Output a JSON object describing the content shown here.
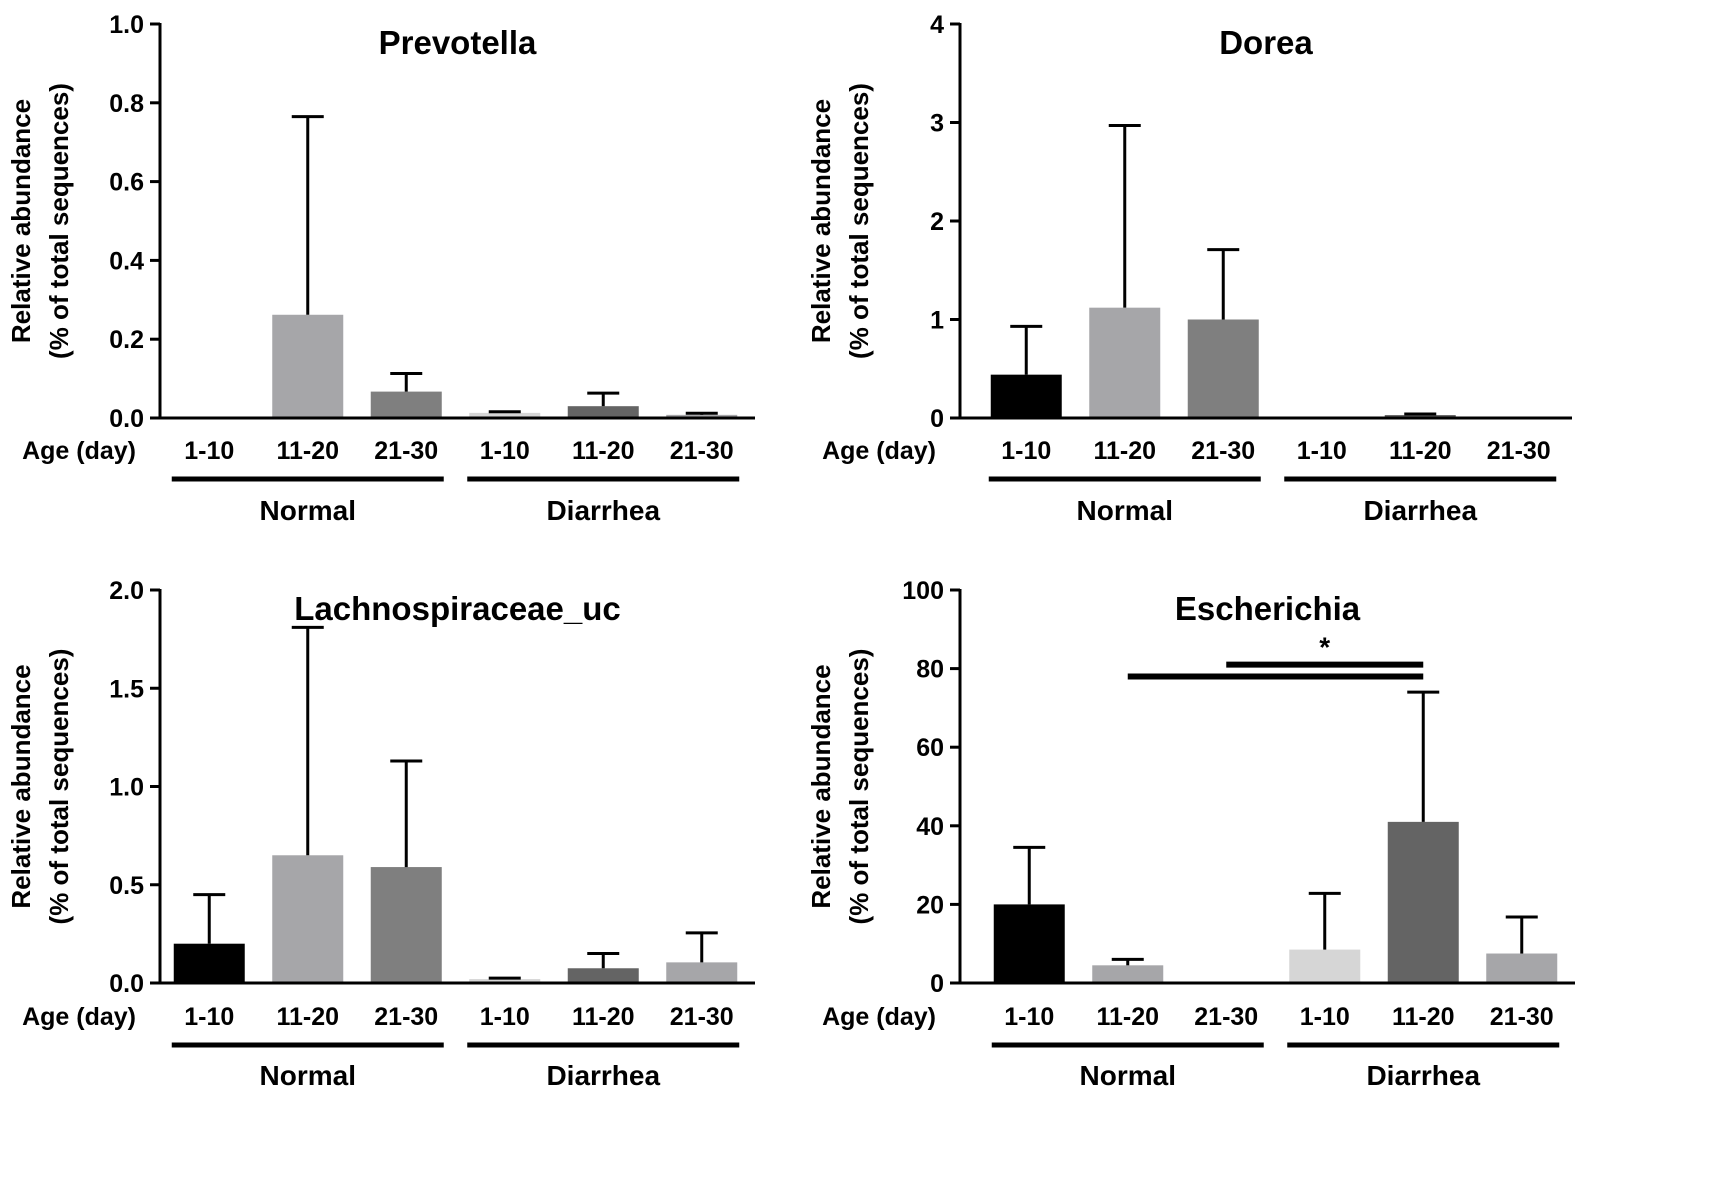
{
  "chart_data": [
    {
      "type": "bar",
      "title": "Prevotella",
      "ylabel_line1": "Relative abundance",
      "ylabel_line2": "(% of total sequences)",
      "xlabel": "Age (day)",
      "yticks": [
        "0.0",
        "0.2",
        "0.4",
        "0.6",
        "0.8",
        "1.0"
      ],
      "ytick_values": [
        0,
        0.2,
        0.4,
        0.6,
        0.8,
        1.0
      ],
      "ylim": [
        0,
        1.0
      ],
      "categories": [
        "1-10",
        "11-20",
        "21-30",
        "1-10",
        "11-20",
        "21-30"
      ],
      "groups": [
        "Normal",
        "Diarrhea"
      ],
      "values": [
        0.0,
        0.262,
        0.067,
        0.013,
        0.03,
        0.008
      ],
      "errors": [
        0.0,
        0.765,
        0.113,
        0.016,
        0.063,
        0.012
      ],
      "colors": [
        "#000000",
        "#a6a6a9",
        "#7f7f7f",
        "#d6d6d6",
        "#646464",
        "#a6a6a9"
      ],
      "significance": []
    },
    {
      "type": "bar",
      "title": "Dorea",
      "ylabel_line1": "Relative abundance",
      "ylabel_line2": "(% of total sequences)",
      "xlabel": "Age (day)",
      "yticks": [
        "0",
        "1",
        "2",
        "3",
        "4"
      ],
      "ytick_values": [
        0,
        1,
        2,
        3,
        4
      ],
      "ylim": [
        0,
        4
      ],
      "categories": [
        "1-10",
        "11-20",
        "21-30",
        "1-10",
        "11-20",
        "21-30"
      ],
      "groups": [
        "Normal",
        "Diarrhea"
      ],
      "values": [
        0.44,
        1.12,
        1.0,
        0.01,
        0.03,
        0.01
      ],
      "errors": [
        0.93,
        2.97,
        1.71,
        0.01,
        0.04,
        0.01
      ],
      "colors": [
        "#000000",
        "#a6a6a9",
        "#7f7f7f",
        "#d6d6d6",
        "#646464",
        "#a6a6a9"
      ],
      "significance": []
    },
    {
      "type": "bar",
      "title": "Lachnospiraceae_uc",
      "ylabel_line1": "Relative abundance",
      "ylabel_line2": "(% of total sequences)",
      "xlabel": "Age (day)",
      "yticks": [
        "0.0",
        "0.5",
        "1.0",
        "1.5",
        "2.0"
      ],
      "ytick_values": [
        0,
        0.5,
        1.0,
        1.5,
        2.0
      ],
      "ylim": [
        0,
        2.0
      ],
      "categories": [
        "1-10",
        "11-20",
        "21-30",
        "1-10",
        "11-20",
        "21-30"
      ],
      "groups": [
        "Normal",
        "Diarrhea"
      ],
      "values": [
        0.2,
        0.65,
        0.59,
        0.02,
        0.075,
        0.105
      ],
      "errors": [
        0.45,
        1.81,
        1.13,
        0.025,
        0.15,
        0.255
      ],
      "colors": [
        "#000000",
        "#a6a6a9",
        "#7f7f7f",
        "#d6d6d6",
        "#646464",
        "#a6a6a9"
      ],
      "significance": []
    },
    {
      "type": "bar",
      "title": "Escherichia",
      "ylabel_line1": "Relative abundance",
      "ylabel_line2": "(% of total sequences)",
      "xlabel": "Age (day)",
      "yticks": [
        "0",
        "20",
        "40",
        "60",
        "80",
        "100"
      ],
      "ytick_values": [
        0,
        20,
        40,
        60,
        80,
        100
      ],
      "ylim": [
        0,
        100
      ],
      "categories": [
        "1-10",
        "11-20",
        "21-30",
        "1-10",
        "11-20",
        "21-30"
      ],
      "groups": [
        "Normal",
        "Diarrhea"
      ],
      "values": [
        20.0,
        4.5,
        0.3,
        8.5,
        41.0,
        7.5
      ],
      "errors": [
        34.5,
        6.0,
        0.3,
        22.8,
        74.0,
        16.8
      ],
      "colors": [
        "#000000",
        "#a6a6a9",
        "#7f7f7f",
        "#d6d6d6",
        "#646464",
        "#a6a6a9"
      ],
      "significance": [
        {
          "from": 2,
          "to": 4,
          "value": 81.0,
          "label": "*"
        },
        {
          "from": 1,
          "to": 4,
          "value": 78.0,
          "label": ""
        }
      ]
    }
  ]
}
